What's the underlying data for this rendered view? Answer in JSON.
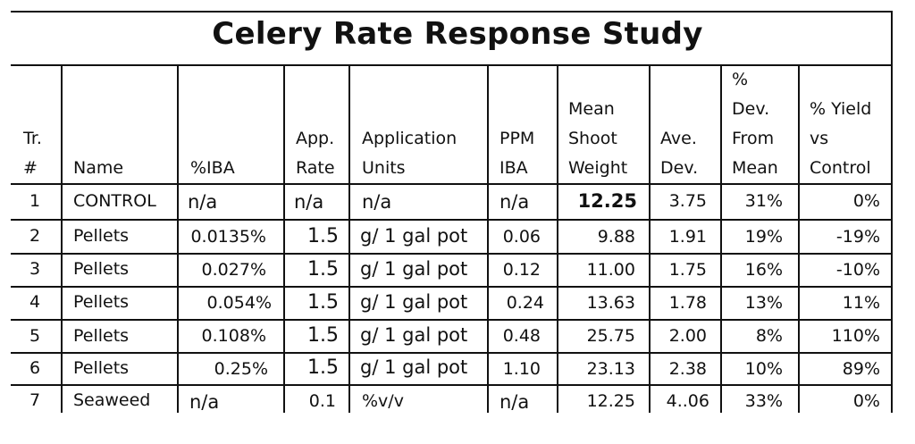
{
  "title": "Celery Rate Response Study",
  "headers": {
    "tr": "Tr.\n#",
    "name": "Name",
    "iba": "%IBA",
    "rate": "App.\nRate",
    "units": "Application\nUnits",
    "ppm": "PPM\nIBA",
    "mean": "Mean\nShoot\nWeight",
    "avedev": "Ave.\nDev.",
    "pctdev": "%\nDev.\nFrom\nMean",
    "yield": "% Yield\nvs\nControl"
  },
  "rows": [
    {
      "tr": "1",
      "name": "CONTROL",
      "iba": "n/a",
      "rate": "n/a",
      "units": "n/a",
      "ppm": "n/a",
      "mean": "12.25",
      "avedev": "3.75",
      "pctdev": "31%",
      "yield": "0%"
    },
    {
      "tr": "2",
      "name": "Pellets",
      "iba": "0.0135%",
      "rate": "1.5",
      "units": "g/ 1 gal pot",
      "ppm": "0.06",
      "mean": "9.88",
      "avedev": "1.91",
      "pctdev": "19%",
      "yield": "-19%"
    },
    {
      "tr": "3",
      "name": "Pellets",
      "iba": "0.027%",
      "rate": "1.5",
      "units": "g/ 1 gal pot",
      "ppm": "0.12",
      "mean": "11.00",
      "avedev": "1.75",
      "pctdev": "16%",
      "yield": "-10%"
    },
    {
      "tr": "4",
      "name": "Pellets",
      "iba": "0.054%",
      "rate": "1.5",
      "units": "g/ 1 gal pot",
      "ppm": "0.24",
      "mean": "13.63",
      "avedev": "1.78",
      "pctdev": "13%",
      "yield": "11%"
    },
    {
      "tr": "5",
      "name": "Pellets",
      "iba": "0.108%",
      "rate": "1.5",
      "units": "g/ 1 gal pot",
      "ppm": "0.48",
      "mean": "25.75",
      "avedev": "2.00",
      "pctdev": "8%",
      "yield": "110%"
    },
    {
      "tr": "6",
      "name": "Pellets",
      "iba": "0.25%",
      "rate": "1.5",
      "units": "g/ 1 gal pot",
      "ppm": "1.10",
      "mean": "23.13",
      "avedev": "2.38",
      "pctdev": "10%",
      "yield": "89%"
    },
    {
      "tr": "7",
      "name": "Seaweed",
      "iba": "n/a",
      "rate": "0.1",
      "units": "%v/v",
      "ppm": "n/a",
      "mean": "12.25",
      "avedev": "4..06",
      "pctdev": "33%",
      "yield": "0%"
    }
  ]
}
